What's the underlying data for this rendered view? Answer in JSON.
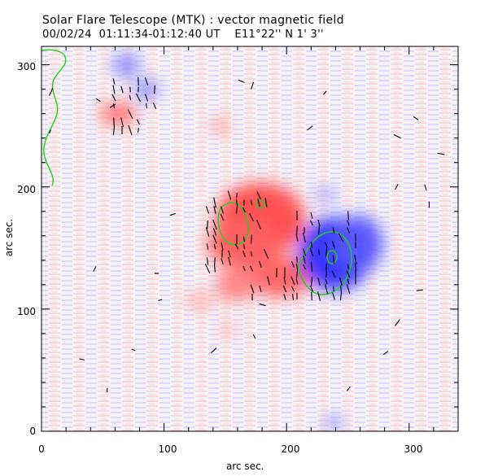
{
  "header": {
    "title": "Solar Flare Telescope (MTK) : vector magnetic field",
    "subtitle": "00/02/24  01:11:34-01:12:40 UT    E11°22'' N 1' 3''"
  },
  "axes": {
    "xlabel": "arc sec.",
    "ylabel": "arc sec.",
    "x_ticks": [
      "0",
      "100",
      "200",
      "300"
    ],
    "y_ticks": [
      "0",
      "100",
      "200",
      "300"
    ],
    "xlim": [
      0,
      340
    ],
    "ylim": [
      0,
      315
    ]
  },
  "colors": {
    "positive_polarity": "#ff4a4a",
    "negative_polarity": "#3a3aff",
    "neutral_line": "#22cc22",
    "vectors": "#000000"
  }
}
